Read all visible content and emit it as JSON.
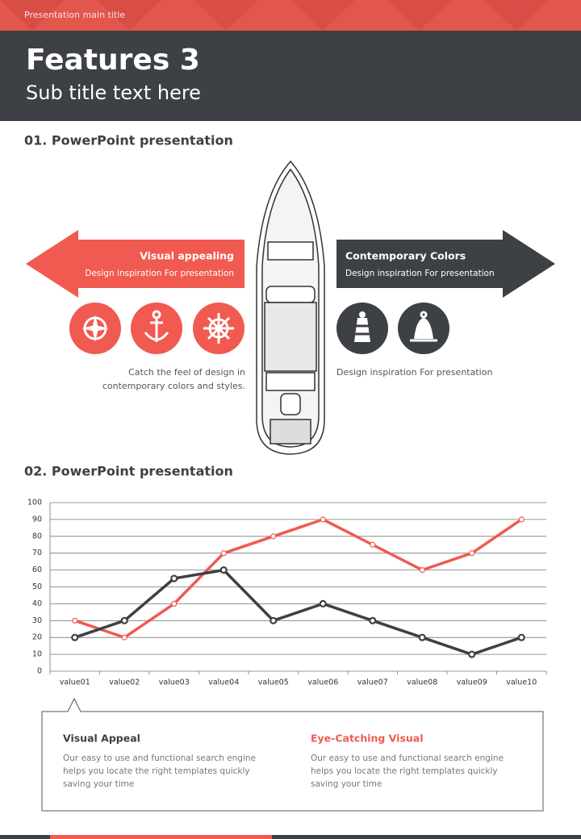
{
  "header": {
    "top_title": "Presentation main title",
    "title": "Features 3",
    "subtitle": "Sub title text here"
  },
  "sections": [
    {
      "heading": "01. PowerPoint presentation",
      "left": {
        "title": "Visual appealing",
        "subtitle": "Design inspiration For presentation",
        "caption": [
          "Catch the feel of design in",
          "contemporary colors and styles."
        ]
      },
      "right": {
        "title": "Contemporary Colors",
        "subtitle": "Design inspiration For presentation",
        "caption": [
          "Design inspiration For presentation"
        ]
      }
    },
    {
      "heading": "02. PowerPoint presentation"
    }
  ],
  "chart_data": {
    "type": "line",
    "categories": [
      "value01",
      "value02",
      "value03",
      "value04",
      "value05",
      "value06",
      "value07",
      "value08",
      "value09",
      "value10"
    ],
    "series": [
      {
        "color": "#f05a50",
        "values": [
          30,
          20,
          40,
          70,
          80,
          90,
          75,
          60,
          70,
          90
        ]
      },
      {
        "color": "#3d4044",
        "values": [
          20,
          30,
          55,
          60,
          30,
          40,
          30,
          20,
          10,
          20
        ]
      }
    ],
    "ylim": [
      0,
      100
    ],
    "yticks": [
      0,
      10,
      20,
      30,
      40,
      50,
      60,
      70,
      80,
      90,
      100
    ],
    "grid": true
  },
  "callouts": [
    {
      "title": "Visual Appeal",
      "lines": [
        "Our easy to use and functional search engine",
        "helps you locate the right templates quickly",
        "saving your time"
      ]
    },
    {
      "title": "Eye-Catching Visual",
      "lines": [
        "Our easy to use and functional search engine",
        "helps you locate the right templates quickly",
        "saving your time"
      ]
    }
  ]
}
